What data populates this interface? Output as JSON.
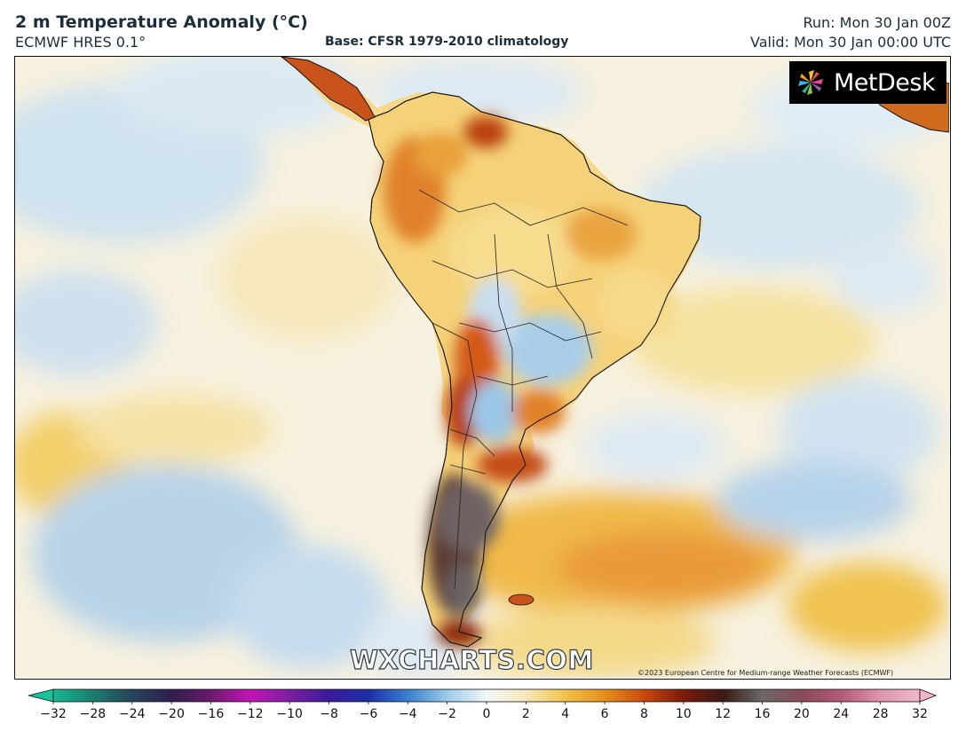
{
  "header": {
    "title": "2 m Temperature Anomaly (°C)",
    "model": "ECMWF HRES 0.1°",
    "base": "Base: CFSR 1979-2010 climatology",
    "run": "Run: Mon 30 Jan 00Z",
    "valid": "Valid: Mon 30 Jan 00:00 UTC"
  },
  "logo": {
    "text": "MetDesk",
    "icon": "metdesk-pinwheel-icon"
  },
  "watermark": "WXCHARTS.COM",
  "copyright": "©2023 European Centre for Medium-range Weather Forecasts (ECMWF)",
  "colorbar": {
    "ticks": [
      "−32",
      "−28",
      "−24",
      "−20",
      "−16",
      "−12",
      "−10",
      "−8",
      "−6",
      "−4",
      "−2",
      "0",
      "2",
      "4",
      "6",
      "8",
      "10",
      "12",
      "16",
      "20",
      "24",
      "28",
      "32"
    ],
    "colors": [
      "#17b993",
      "#1a7d6c",
      "#25445c",
      "#2f1f4d",
      "#6a1a6b",
      "#c414b8",
      "#7a1f9f",
      "#3a1a9a",
      "#1b2ea8",
      "#3a7fd0",
      "#9ccbe8",
      "#f2f7fb",
      "#f8e8b8",
      "#f2c248",
      "#e68e1c",
      "#c8480c",
      "#7a1a0c",
      "#3c1a14",
      "#6c6868",
      "#8a4a58",
      "#b45a78",
      "#e095b0",
      "#f0b8cc"
    ],
    "extend_low_color": "#17c39b",
    "extend_high_color": "#f5b5c9"
  }
}
